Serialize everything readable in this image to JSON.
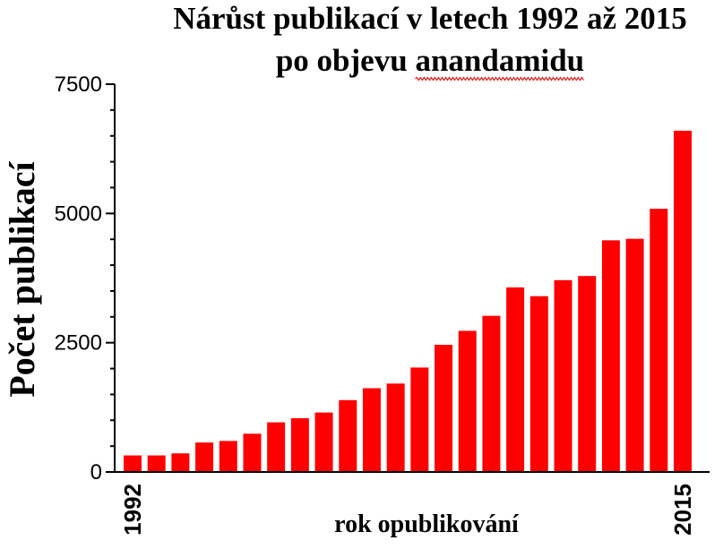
{
  "chart_data": {
    "type": "bar",
    "title_line1": "Nárůst publikací v letech 1992 až 2015",
    "title_line2_prefix": "po objevu ",
    "title_line2_word": "anandamidu",
    "xlabel": "rok opublikování",
    "ylabel": "Počet publikací",
    "x_tick_labels": [
      "1992",
      "2015"
    ],
    "y_ticks": [
      0,
      2500,
      5000,
      7500
    ],
    "ylim": [
      0,
      7500
    ],
    "bar_color": "#ff0000",
    "categories": [
      "1992",
      "1993",
      "1994",
      "1995",
      "1996",
      "1997",
      "1998",
      "1999",
      "2000",
      "2001",
      "2002",
      "2003",
      "2004",
      "2005",
      "2006",
      "2007",
      "2008",
      "2009",
      "2010",
      "2011",
      "2012",
      "2013",
      "2014",
      "2015"
    ],
    "values": [
      320,
      320,
      360,
      570,
      600,
      740,
      960,
      1040,
      1150,
      1390,
      1620,
      1710,
      2020,
      2460,
      2730,
      3020,
      3570,
      3400,
      3710,
      3790,
      4480,
      4510,
      5090,
      6600
    ]
  }
}
